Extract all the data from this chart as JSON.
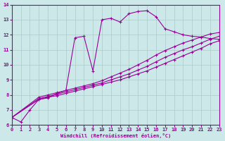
{
  "xlabel": "Windchill (Refroidissement éolien,°C)",
  "bg_color": "#cce8e8",
  "grid_color": "#aacccc",
  "line_color": "#990099",
  "xlim": [
    0,
    23
  ],
  "ylim": [
    6,
    14
  ],
  "xticks": [
    0,
    1,
    2,
    3,
    4,
    5,
    6,
    7,
    8,
    9,
    10,
    11,
    12,
    13,
    14,
    15,
    16,
    17,
    18,
    19,
    20,
    21,
    22,
    23
  ],
  "yticks": [
    6,
    7,
    8,
    9,
    10,
    11,
    12,
    13,
    14
  ],
  "lines": [
    {
      "x": [
        0,
        1,
        2,
        3,
        4,
        5,
        6,
        7,
        8,
        9,
        10,
        11,
        12,
        13,
        14,
        15,
        16,
        17,
        18,
        19,
        20,
        21,
        22,
        23
      ],
      "y": [
        6.5,
        6.2,
        7.0,
        7.7,
        7.8,
        8.1,
        8.3,
        11.8,
        11.9,
        9.6,
        13.0,
        13.1,
        12.85,
        13.4,
        13.55,
        13.6,
        13.2,
        12.4,
        12.2,
        12.0,
        11.9,
        11.85,
        11.75,
        11.7
      ]
    },
    {
      "x": [
        0,
        3,
        4,
        5,
        6,
        7,
        8,
        9,
        10,
        11,
        12,
        13,
        14,
        15,
        16,
        17,
        18,
        19,
        20,
        21,
        22,
        23
      ],
      "y": [
        6.5,
        7.7,
        7.85,
        7.95,
        8.1,
        8.25,
        8.4,
        8.55,
        8.7,
        8.85,
        9.0,
        9.2,
        9.4,
        9.6,
        9.85,
        10.1,
        10.35,
        10.6,
        10.85,
        11.1,
        11.4,
        11.6
      ]
    },
    {
      "x": [
        0,
        3,
        4,
        5,
        6,
        7,
        8,
        9,
        10,
        11,
        12,
        13,
        14,
        15,
        16,
        17,
        18,
        19,
        20,
        21,
        22,
        23
      ],
      "y": [
        6.5,
        7.75,
        7.9,
        8.05,
        8.2,
        8.35,
        8.5,
        8.65,
        8.8,
        9.0,
        9.2,
        9.4,
        9.65,
        9.9,
        10.2,
        10.5,
        10.75,
        11.0,
        11.2,
        11.45,
        11.7,
        11.9
      ]
    },
    {
      "x": [
        0,
        3,
        4,
        5,
        6,
        7,
        8,
        9,
        10,
        11,
        12,
        13,
        14,
        15,
        16,
        17,
        18,
        19,
        20,
        21,
        22,
        23
      ],
      "y": [
        6.5,
        7.85,
        8.0,
        8.15,
        8.3,
        8.45,
        8.6,
        8.75,
        8.95,
        9.2,
        9.45,
        9.7,
        10.0,
        10.3,
        10.65,
        10.95,
        11.2,
        11.45,
        11.65,
        11.85,
        12.05,
        12.15
      ]
    }
  ]
}
